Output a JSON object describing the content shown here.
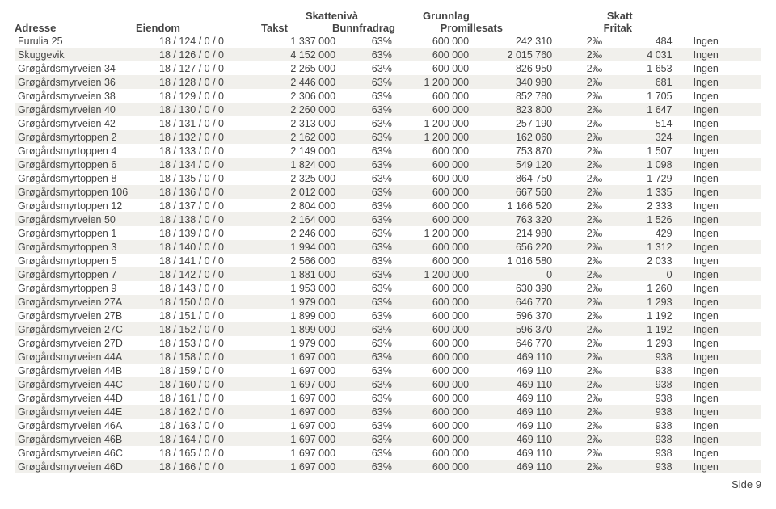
{
  "colors": {
    "text": "#444444",
    "row_odd_bg": "#ffffff",
    "row_even_bg": "#f1f0ec",
    "page_bg": "#ffffff"
  },
  "typography": {
    "font_family": "Arial, Helvetica, sans-serif",
    "body_fontsize_pt": 9,
    "header_fontsize_pt": 10,
    "header_weight": "bold"
  },
  "header1": {
    "nivaa": "Skattenivå",
    "grunnlag": "Grunnlag",
    "skatt": "Skatt"
  },
  "header2": {
    "adresse": "Adresse",
    "eiendom": "Eiendom",
    "takst": "Takst",
    "bunn": "Bunnfradrag",
    "sats": "Promillesats",
    "fritak": "Fritak"
  },
  "columns": [
    "adresse",
    "eiendom",
    "takst",
    "nivaa",
    "bunn",
    "grunnlag",
    "sats",
    "skatt",
    "fritak"
  ],
  "column_align": {
    "adresse": "left",
    "eiendom": "left",
    "takst": "right",
    "nivaa": "right",
    "bunn": "right",
    "grunnlag": "right",
    "sats": "right",
    "skatt": "right",
    "fritak": "left"
  },
  "rows": [
    [
      "Furulia 25",
      "18 / 124 / 0 / 0",
      "1 337 000",
      "63%",
      "600 000",
      "242 310",
      "2‰",
      "484",
      "Ingen"
    ],
    [
      "Skuggevik",
      "18 / 126 / 0 / 0",
      "4 152 000",
      "63%",
      "600 000",
      "2 015 760",
      "2‰",
      "4 031",
      "Ingen"
    ],
    [
      "Grøgårdsmyrveien 34",
      "18 / 127 / 0 / 0",
      "2 265 000",
      "63%",
      "600 000",
      "826 950",
      "2‰",
      "1 653",
      "Ingen"
    ],
    [
      "Grøgårdsmyrveien 36",
      "18 / 128 / 0 / 0",
      "2 446 000",
      "63%",
      "1 200 000",
      "340 980",
      "2‰",
      "681",
      "Ingen"
    ],
    [
      "Grøgårdsmyrveien 38",
      "18 / 129 / 0 / 0",
      "2 306 000",
      "63%",
      "600 000",
      "852 780",
      "2‰",
      "1 705",
      "Ingen"
    ],
    [
      "Grøgårdsmyrveien 40",
      "18 / 130 / 0 / 0",
      "2 260 000",
      "63%",
      "600 000",
      "823 800",
      "2‰",
      "1 647",
      "Ingen"
    ],
    [
      "Grøgårdsmyrveien 42",
      "18 / 131 / 0 / 0",
      "2 313 000",
      "63%",
      "1 200 000",
      "257 190",
      "2‰",
      "514",
      "Ingen"
    ],
    [
      "Grøgårdsmyrtoppen 2",
      "18 / 132 / 0 / 0",
      "2 162 000",
      "63%",
      "1 200 000",
      "162 060",
      "2‰",
      "324",
      "Ingen"
    ],
    [
      "Grøgårdsmyrtoppen 4",
      "18 / 133 / 0 / 0",
      "2 149 000",
      "63%",
      "600 000",
      "753 870",
      "2‰",
      "1 507",
      "Ingen"
    ],
    [
      "Grøgårdsmyrtoppen 6",
      "18 / 134 / 0 / 0",
      "1 824 000",
      "63%",
      "600 000",
      "549 120",
      "2‰",
      "1 098",
      "Ingen"
    ],
    [
      "Grøgårdsmyrtoppen 8",
      "18 / 135 / 0 / 0",
      "2 325 000",
      "63%",
      "600 000",
      "864 750",
      "2‰",
      "1 729",
      "Ingen"
    ],
    [
      "Grøgårdsmyrtoppen 106",
      "18 / 136 / 0 / 0",
      "2 012 000",
      "63%",
      "600 000",
      "667 560",
      "2‰",
      "1 335",
      "Ingen"
    ],
    [
      "Grøgårdsmyrtoppen 12",
      "18 / 137 / 0 / 0",
      "2 804 000",
      "63%",
      "600 000",
      "1 166 520",
      "2‰",
      "2 333",
      "Ingen"
    ],
    [
      "Grøgårdsmyrveien 50",
      "18 / 138 / 0 / 0",
      "2 164 000",
      "63%",
      "600 000",
      "763 320",
      "2‰",
      "1 526",
      "Ingen"
    ],
    [
      "Grøgårdsmyrtoppen 1",
      "18 / 139 / 0 / 0",
      "2 246 000",
      "63%",
      "1 200 000",
      "214 980",
      "2‰",
      "429",
      "Ingen"
    ],
    [
      "Grøgårdsmyrtoppen 3",
      "18 / 140 / 0 / 0",
      "1 994 000",
      "63%",
      "600 000",
      "656 220",
      "2‰",
      "1 312",
      "Ingen"
    ],
    [
      "Grøgårdsmyrtoppen 5",
      "18 / 141 / 0 / 0",
      "2 566 000",
      "63%",
      "600 000",
      "1 016 580",
      "2‰",
      "2 033",
      "Ingen"
    ],
    [
      "Grøgårdsmyrtoppen 7",
      "18 / 142 / 0 / 0",
      "1 881 000",
      "63%",
      "1 200 000",
      "0",
      "2‰",
      "0",
      "Ingen"
    ],
    [
      "Grøgårdsmyrtoppen 9",
      "18 / 143 / 0 / 0",
      "1 953 000",
      "63%",
      "600 000",
      "630 390",
      "2‰",
      "1 260",
      "Ingen"
    ],
    [
      "Grøgårdsmyrveien 27A",
      "18 / 150 / 0 / 0",
      "1 979 000",
      "63%",
      "600 000",
      "646 770",
      "2‰",
      "1 293",
      "Ingen"
    ],
    [
      "Grøgårdsmyrveien 27B",
      "18 / 151 / 0 / 0",
      "1 899 000",
      "63%",
      "600 000",
      "596 370",
      "2‰",
      "1 192",
      "Ingen"
    ],
    [
      "Grøgårdsmyrveien 27C",
      "18 / 152 / 0 / 0",
      "1 899 000",
      "63%",
      "600 000",
      "596 370",
      "2‰",
      "1 192",
      "Ingen"
    ],
    [
      "Grøgårdsmyrveien 27D",
      "18 / 153 / 0 / 0",
      "1 979 000",
      "63%",
      "600 000",
      "646 770",
      "2‰",
      "1 293",
      "Ingen"
    ],
    [
      "Grøgårdsmyrveien 44A",
      "18 / 158 / 0 / 0",
      "1 697 000",
      "63%",
      "600 000",
      "469 110",
      "2‰",
      "938",
      "Ingen"
    ],
    [
      "Grøgårdsmyrveien 44B",
      "18 / 159 / 0 / 0",
      "1 697 000",
      "63%",
      "600 000",
      "469 110",
      "2‰",
      "938",
      "Ingen"
    ],
    [
      "Grøgårdsmyrveien 44C",
      "18 / 160 / 0 / 0",
      "1 697 000",
      "63%",
      "600 000",
      "469 110",
      "2‰",
      "938",
      "Ingen"
    ],
    [
      "Grøgårdsmyrveien 44D",
      "18 / 161 / 0 / 0",
      "1 697 000",
      "63%",
      "600 000",
      "469 110",
      "2‰",
      "938",
      "Ingen"
    ],
    [
      "Grøgårdsmyrveien 44E",
      "18 / 162 / 0 / 0",
      "1 697 000",
      "63%",
      "600 000",
      "469 110",
      "2‰",
      "938",
      "Ingen"
    ],
    [
      "Grøgårdsmyrveien 46A",
      "18 / 163 / 0 / 0",
      "1 697 000",
      "63%",
      "600 000",
      "469 110",
      "2‰",
      "938",
      "Ingen"
    ],
    [
      "Grøgårdsmyrveien 46B",
      "18 / 164 / 0 / 0",
      "1 697 000",
      "63%",
      "600 000",
      "469 110",
      "2‰",
      "938",
      "Ingen"
    ],
    [
      "Grøgårdsmyrveien 46C",
      "18 / 165 / 0 / 0",
      "1 697 000",
      "63%",
      "600 000",
      "469 110",
      "2‰",
      "938",
      "Ingen"
    ],
    [
      "Grøgårdsmyrveien 46D",
      "18 / 166 / 0 / 0",
      "1 697 000",
      "63%",
      "600 000",
      "469 110",
      "2‰",
      "938",
      "Ingen"
    ]
  ],
  "footer": "Side 9"
}
